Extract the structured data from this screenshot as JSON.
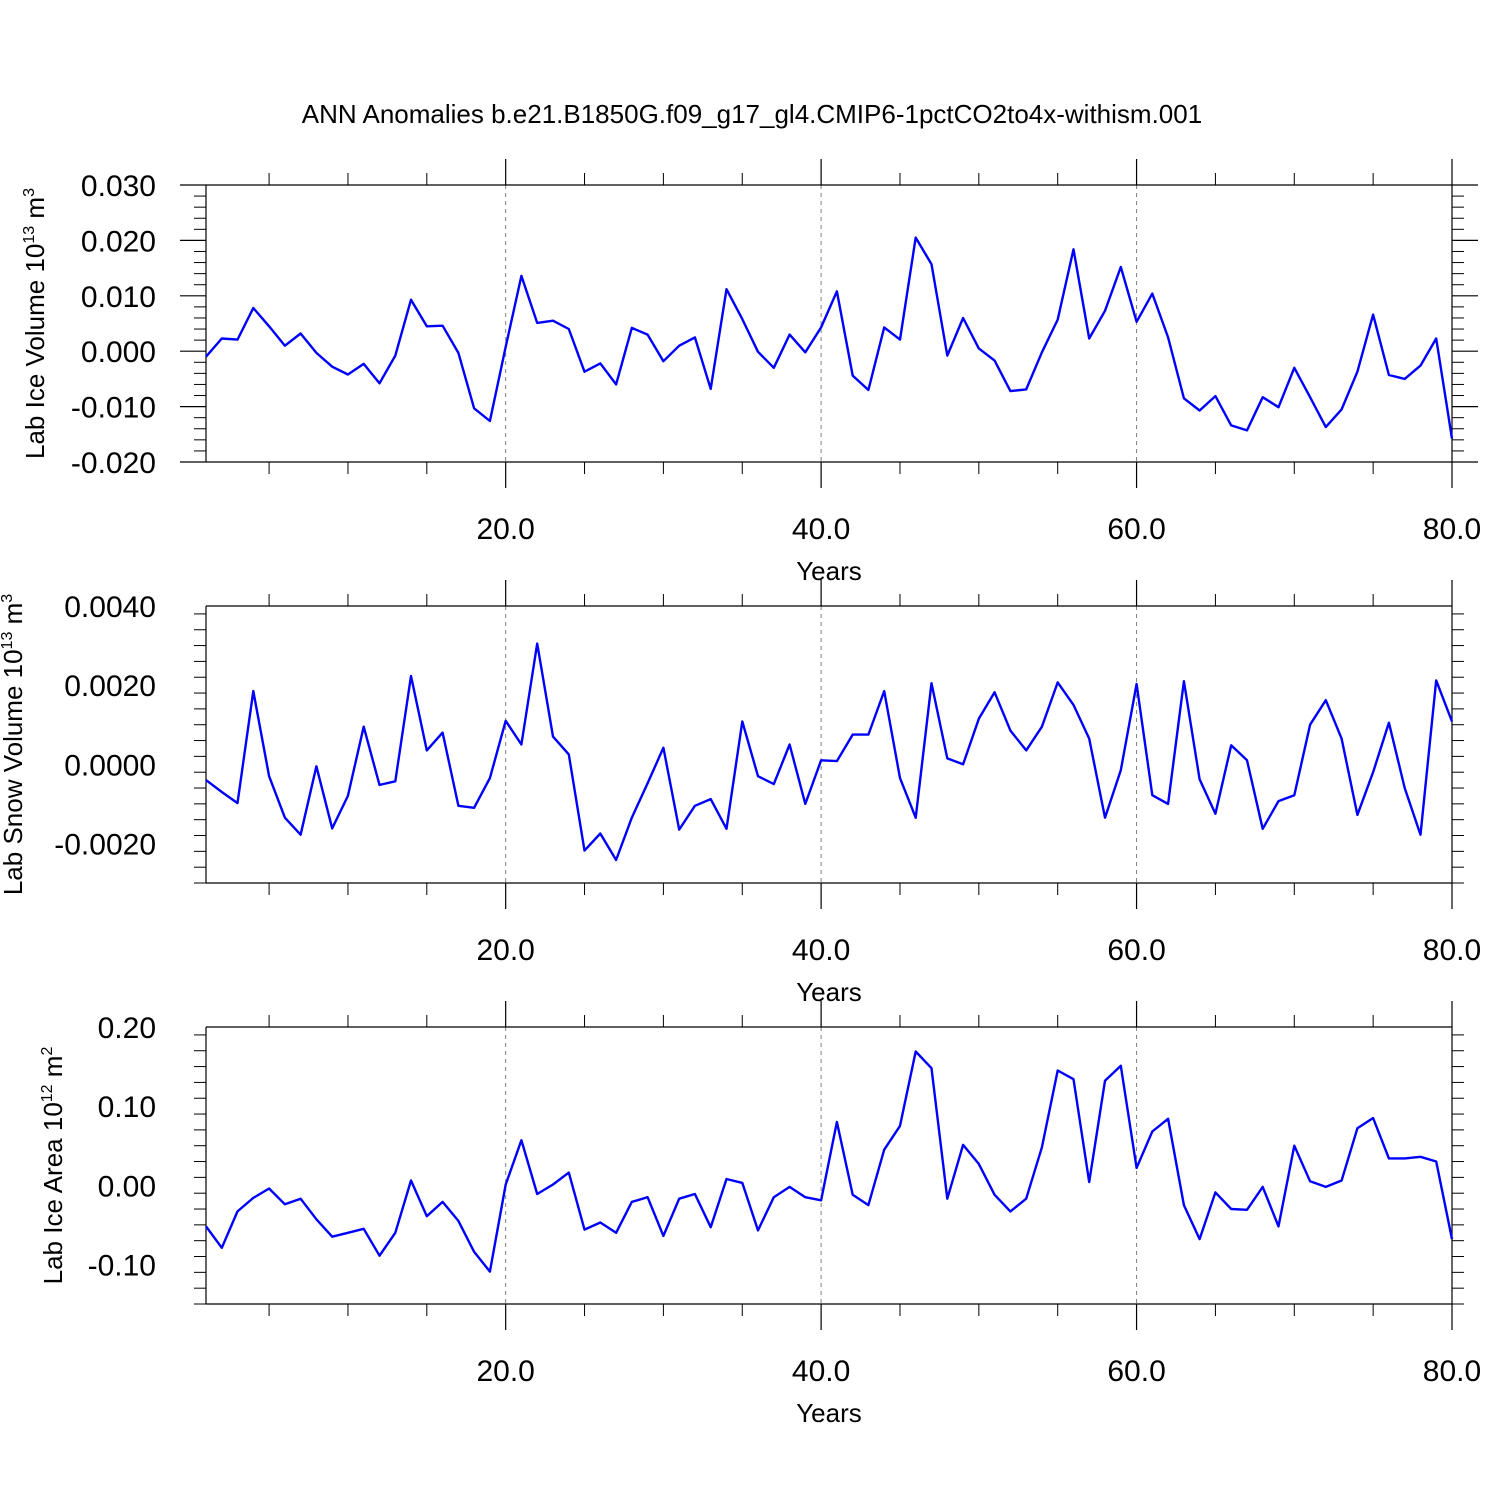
{
  "title": "ANN Anomalies b.e21.B1850G.f09_g17_gl4.CMIP6-1pctCO2to4x-withism.001",
  "colors": {
    "line": "#0000ff",
    "frame": "#000000",
    "grid": "#808080"
  },
  "chart_data": [
    {
      "type": "line",
      "ylabel": {
        "text": "Lab Ice Volume 10",
        "exp": "13",
        "unit": "m",
        "unit_exp": "3"
      },
      "xlabel": "Years",
      "xlim": [
        1,
        80
      ],
      "ylim": [
        -0.02,
        0.03
      ],
      "yticks": [
        -0.02,
        -0.01,
        0.0,
        0.01,
        0.02,
        0.03
      ],
      "ytick_labels": [
        "-0.020",
        "-0.010",
        "0.000",
        "0.010",
        "0.020",
        "0.030"
      ],
      "xticks": [
        20,
        40,
        60,
        80
      ],
      "xtick_labels": [
        "20.0",
        "40.0",
        "60.0",
        "80.0"
      ],
      "series": [
        {
          "x_start": 1,
          "values": [
            -0.001,
            0.0023,
            0.0021,
            0.0078,
            0.0045,
            0.001,
            0.0032,
            -0.0003,
            -0.0028,
            -0.0042,
            -0.0023,
            -0.0058,
            -0.0008,
            0.0093,
            0.0045,
            0.0046,
            -0.0003,
            -0.0103,
            -0.0126,
            0.0008,
            0.0136,
            0.0051,
            0.0055,
            0.004,
            -0.0037,
            -0.0022,
            -0.006,
            0.0042,
            0.003,
            -0.0018,
            0.001,
            0.0025,
            -0.0068,
            0.0112,
            0.0058,
            -0.0001,
            -0.003,
            0.003,
            -0.0002,
            0.0043,
            0.0108,
            -0.0044,
            -0.007,
            0.0043,
            0.0021,
            0.0205,
            0.0157,
            -0.0008,
            0.006,
            0.0005,
            -0.0017,
            -0.0072,
            -0.0069,
            -0.0002,
            0.0057,
            0.0184,
            0.0023,
            0.0073,
            0.0152,
            0.0053,
            0.0104,
            0.0025,
            -0.0085,
            -0.0107,
            -0.0081,
            -0.0134,
            -0.0143,
            -0.0083,
            -0.0101,
            -0.003,
            -0.0083,
            -0.0137,
            -0.0105,
            -0.0037,
            0.0066,
            -0.0043,
            -0.005,
            -0.0026,
            0.0023,
            -0.0158
          ]
        }
      ]
    },
    {
      "type": "line",
      "ylabel": {
        "text": "Lab Snow Volume 10",
        "exp": "13",
        "unit": "m",
        "unit_exp": "3"
      },
      "xlabel": "Years",
      "xlim": [
        1,
        80
      ],
      "ylim": [
        -0.003,
        0.004
      ],
      "yticks": [
        -0.002,
        0.0,
        0.002,
        0.004
      ],
      "ytick_labels": [
        "-0.0020",
        "0.0000",
        "0.0020",
        "0.0040"
      ],
      "xticks": [
        20,
        40,
        60,
        80
      ],
      "xtick_labels": [
        "20.0",
        "40.0",
        "60.0",
        "80.0"
      ],
      "series": [
        {
          "x_start": 1,
          "values": [
            -0.0004,
            -0.0007,
            -0.00098,
            0.00185,
            -0.0003,
            -0.00135,
            -0.00178,
            -5e-05,
            -0.00162,
            -0.0008,
            0.00095,
            -0.00052,
            -0.00043,
            0.00223,
            0.00035,
            0.0008,
            -0.00105,
            -0.0011,
            -0.00035,
            0.0011,
            0.0005,
            0.00305,
            0.0007,
            0.00025,
            -0.00218,
            -0.00175,
            -0.00242,
            -0.00135,
            -0.00048,
            0.00042,
            -0.00165,
            -0.00105,
            -0.00088,
            -0.00163,
            0.00108,
            -0.0003,
            -0.0005,
            0.0005,
            -0.001,
            0.0001,
            8e-05,
            0.00075,
            0.00075,
            0.00185,
            -0.00035,
            -0.00135,
            0.00205,
            0.00015,
            0.0,
            0.00115,
            0.00182,
            0.00085,
            0.00035,
            0.00095,
            0.00207,
            0.0015,
            0.00065,
            -0.00135,
            -0.00015,
            0.00203,
            -0.00078,
            -0.001,
            0.0021,
            -0.00038,
            -0.00125,
            0.00048,
            0.0001,
            -0.00163,
            -0.00093,
            -0.00078,
            0.001,
            0.00162,
            0.00065,
            -0.00128,
            -0.0002,
            0.00105,
            -0.0006,
            -0.00178,
            0.00212,
            0.00108
          ]
        }
      ]
    },
    {
      "type": "line",
      "ylabel": {
        "text": "Lab Ice Area 10",
        "exp": "12",
        "unit": "m",
        "unit_exp": "2"
      },
      "xlabel": "Years",
      "xlim": [
        1,
        80
      ],
      "ylim": [
        -0.15,
        0.2
      ],
      "yticks": [
        -0.1,
        0.0,
        0.1,
        0.2
      ],
      "ytick_labels": [
        "-0.10",
        "0.00",
        "0.10",
        "0.20"
      ],
      "xticks": [
        20,
        40,
        60,
        80
      ],
      "xtick_labels": [
        "20.0",
        "40.0",
        "60.0",
        "80.0"
      ],
      "series": [
        {
          "x_start": 1,
          "values": [
            -0.052,
            -0.079,
            -0.033,
            -0.016,
            -0.004,
            -0.024,
            -0.017,
            -0.043,
            -0.065,
            -0.06,
            -0.055,
            -0.089,
            -0.06,
            0.006,
            -0.039,
            -0.021,
            -0.045,
            -0.084,
            -0.109,
            0.001,
            0.057,
            -0.011,
            0.001,
            0.016,
            -0.056,
            -0.047,
            -0.06,
            -0.021,
            -0.015,
            -0.064,
            -0.017,
            -0.011,
            -0.053,
            0.008,
            0.003,
            -0.057,
            -0.015,
            -0.002,
            -0.015,
            -0.019,
            0.08,
            -0.012,
            -0.025,
            0.045,
            0.075,
            0.169,
            0.148,
            -0.017,
            0.051,
            0.027,
            -0.012,
            -0.033,
            -0.017,
            0.048,
            0.145,
            0.134,
            0.004,
            0.132,
            0.151,
            0.022,
            0.068,
            0.084,
            -0.025,
            -0.068,
            -0.009,
            -0.03,
            -0.031,
            -0.002,
            -0.052,
            0.05,
            0.005,
            -0.002,
            0.006,
            0.072,
            0.085,
            0.034,
            0.034,
            0.036,
            0.03,
            -0.068
          ]
        }
      ]
    }
  ]
}
